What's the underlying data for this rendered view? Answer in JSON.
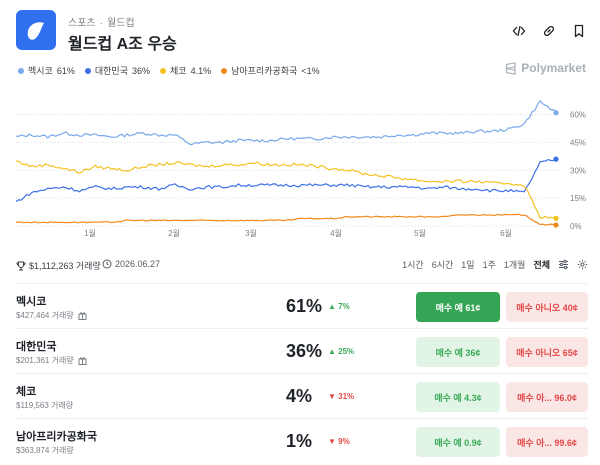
{
  "header": {
    "breadcrumb": [
      "스포츠",
      "월드컵"
    ],
    "breadcrumb_sep": "·",
    "title": "월드컵 A조 우승",
    "icons": [
      "code-icon",
      "link-icon",
      "bookmark-icon"
    ]
  },
  "brand": {
    "name": "Polymarket",
    "color": "#aab0b8"
  },
  "colors": {
    "mexico": "#78a9ea",
    "korea": "#3d6fe8",
    "czech": "#f3c221",
    "south_africa": "#f08a1c",
    "yes": "#33a554",
    "no": "#e34848"
  },
  "legend": [
    {
      "label": "멕시코",
      "value": "61%",
      "color": "#78a9ea"
    },
    {
      "label": "대한민국",
      "value": "36%",
      "color": "#3d6fe8"
    },
    {
      "label": "체코",
      "value": "4.1%",
      "color": "#f3c221"
    },
    {
      "label": "남아프리카공화국",
      "value": "<1%",
      "color": "#f08a1c"
    }
  ],
  "chart_data": {
    "type": "line",
    "x_tick_labels": [
      "1월",
      "2월",
      "3월",
      "4월",
      "5월",
      "6월"
    ],
    "y_tick_labels": [
      "60%",
      "45%",
      "30%",
      "15%",
      "0%"
    ],
    "ylim": [
      0,
      70
    ],
    "grid": "horizontal-dotted",
    "series": [
      {
        "name": "멕시코",
        "color": "#78a9ea",
        "values": [
          48,
          49,
          48,
          50,
          49,
          49,
          48,
          49,
          50,
          49,
          49,
          44,
          45,
          45,
          46,
          46,
          46,
          47,
          47,
          47,
          48,
          48,
          48,
          48,
          49,
          49,
          50,
          50,
          50,
          51,
          51,
          52,
          55,
          67,
          61
        ]
      },
      {
        "name": "대한민국",
        "color": "#3d6fe8",
        "values": [
          13,
          18,
          20,
          21,
          19,
          21,
          20,
          21,
          21,
          20,
          22,
          20,
          21,
          21,
          22,
          22,
          22,
          22,
          22,
          22,
          22,
          22,
          21,
          21,
          21,
          21,
          20,
          21,
          20,
          20,
          19,
          19,
          18,
          34,
          36
        ]
      },
      {
        "name": "체코",
        "color": "#f3c221",
        "values": [
          35,
          32,
          33,
          31,
          29,
          32,
          31,
          30,
          32,
          33,
          34,
          33,
          32,
          33,
          33,
          34,
          33,
          33,
          33,
          32,
          31,
          30,
          28,
          27,
          26,
          25,
          24,
          24,
          24,
          24,
          23,
          23,
          22,
          5,
          4.1
        ]
      },
      {
        "name": "남아프리카공화국",
        "color": "#f08a1c",
        "values": [
          2,
          2,
          2,
          2,
          2,
          2,
          2,
          3,
          3,
          3,
          3,
          3,
          3,
          3,
          3,
          3,
          3,
          3,
          4,
          4,
          4,
          5,
          5,
          5,
          5,
          5,
          5,
          5,
          6,
          6,
          6,
          6,
          6,
          1,
          0.5
        ]
      }
    ]
  },
  "stats": {
    "volume": "$1,112,263 거래량",
    "date": "2026.06.27"
  },
  "ranges": [
    "1시간",
    "6시간",
    "1일",
    "1주",
    "1개월",
    "전체"
  ],
  "active_range": "전체",
  "outcomes": [
    {
      "name": "멕시코",
      "volume": "$427,464 거래량",
      "pct": "61%",
      "change": "7%",
      "dir": "up",
      "arrow": "▲",
      "yes": "매수 예 61¢",
      "no": "매수 아니오 40¢",
      "yes_primary": true
    },
    {
      "name": "대한민국",
      "volume": "$201,361 거래량",
      "pct": "36%",
      "change": "25%",
      "dir": "up",
      "arrow": "▲",
      "yes": "매수 예 36¢",
      "no": "매수 아니오 65¢",
      "yes_primary": false
    },
    {
      "name": "체코",
      "volume": "$119,563 거래량",
      "pct": "4%",
      "change": "31%",
      "dir": "down",
      "arrow": "▼",
      "yes": "매수 예 4.3¢",
      "no": "매수 아... 96.0¢",
      "yes_primary": false
    },
    {
      "name": "남아프리카공화국",
      "volume": "$363,874 거래량",
      "pct": "1%",
      "change": "9%",
      "dir": "down",
      "arrow": "▼",
      "yes": "매수 예 0.9¢",
      "no": "매수 아... 99.6¢",
      "yes_primary": false
    }
  ]
}
